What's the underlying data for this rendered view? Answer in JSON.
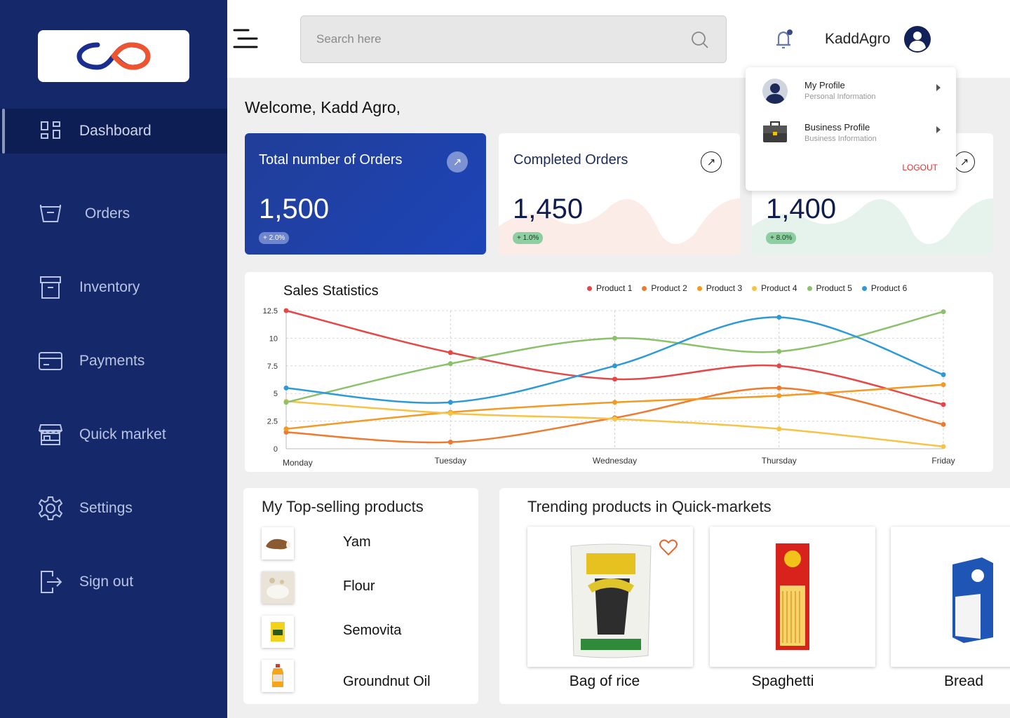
{
  "sidebar": {
    "items": [
      {
        "label": "Dashboard",
        "icon": "dashboard-grid-icon"
      },
      {
        "label": "Orders",
        "icon": "basket-icon"
      },
      {
        "label": "Inventory",
        "icon": "archive-box-icon"
      },
      {
        "label": "Payments",
        "icon": "credit-card-icon"
      },
      {
        "label": "Quick market",
        "icon": "storefront-icon"
      },
      {
        "label": "Settings",
        "icon": "gear-icon"
      },
      {
        "label": "Sign out",
        "icon": "sign-out-icon"
      }
    ],
    "active": "Dashboard"
  },
  "header": {
    "search_placeholder": "Search here",
    "username": "KaddAgro"
  },
  "profile_menu": {
    "items": [
      {
        "title": "My Profile",
        "subtitle": "Personal Information"
      },
      {
        "title": "Business Profile",
        "subtitle": "Business Information"
      }
    ],
    "logout": "LOGOUT"
  },
  "welcome": {
    "prefix": "Welcome,",
    "name": "Kadd Agro,"
  },
  "stats": [
    {
      "title": "Total number of Orders",
      "value": "1,500",
      "change": "+ 2.0%"
    },
    {
      "title": "Completed Orders",
      "value": "1,450",
      "change": "+ 1.0%"
    },
    {
      "title": "",
      "value": "1,400",
      "change": "+ 8.0%"
    }
  ],
  "chart_data": {
    "type": "line",
    "title": "Sales Statistics",
    "categories": [
      "Monday",
      "Tuesday",
      "Wednesday",
      "Thursday",
      "Friday"
    ],
    "ylim": [
      0,
      12.5
    ],
    "yticks": [
      "0",
      "2.5",
      "5",
      "7.5",
      "10",
      "12.5"
    ],
    "grid": true,
    "legend_position": "top-right",
    "series": [
      {
        "name": "Product 1",
        "color": "#e84646",
        "values": [
          12.5,
          8.7,
          6.3,
          7.5,
          4.0
        ]
      },
      {
        "name": "Product 2",
        "color": "#ef7a2d",
        "values": [
          1.5,
          0.6,
          2.8,
          5.5,
          2.2
        ]
      },
      {
        "name": "Product 3",
        "color": "#f29a24",
        "values": [
          1.8,
          3.3,
          4.2,
          4.8,
          5.8
        ]
      },
      {
        "name": "Product 4",
        "color": "#f7c347",
        "values": [
          4.3,
          3.2,
          2.7,
          1.8,
          0.2
        ]
      },
      {
        "name": "Product 5",
        "color": "#8bc16a",
        "values": [
          4.2,
          7.7,
          10.0,
          8.8,
          12.4
        ]
      },
      {
        "name": "Product 6",
        "color": "#2d9ad8",
        "values": [
          5.5,
          4.2,
          7.5,
          11.9,
          6.7
        ]
      }
    ]
  },
  "top_selling": {
    "title": "My Top-selling products",
    "items": [
      "Yam",
      "Flour",
      "Semovita",
      "Groundnut Oil"
    ]
  },
  "trending": {
    "title": "Trending products in Quick-markets",
    "items": [
      "Bag of rice",
      "Spaghetti",
      "Bread"
    ]
  },
  "colors": {
    "sidebar": "#15296a",
    "accent_red": "#e0312e",
    "card_blue": "#1f3e9e"
  }
}
